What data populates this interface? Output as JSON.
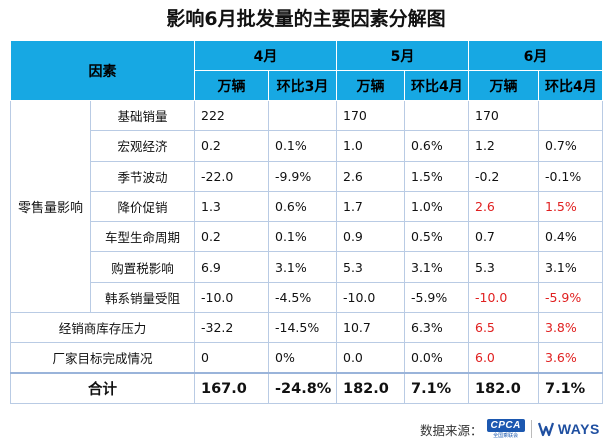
{
  "title": "影响6月批发量的主要因素分解图",
  "header": {
    "factor": "因素",
    "months": [
      {
        "label": "4月",
        "col1": "万辆",
        "col2": "环比3月"
      },
      {
        "label": "5月",
        "col1": "万辆",
        "col2": "环比4月"
      },
      {
        "label": "6月",
        "col1": "万辆",
        "col2": "环比4月"
      }
    ]
  },
  "retail_group_label": "零售量影响",
  "rows": [
    {
      "label": "基础销量",
      "apr_v": "222",
      "apr_p": "",
      "may_v": "170",
      "may_p": "",
      "jun_v": "170",
      "jun_p": ""
    },
    {
      "label": "宏观经济",
      "apr_v": "0.2",
      "apr_p": "0.1%",
      "may_v": "1.0",
      "may_p": "0.6%",
      "jun_v": "1.2",
      "jun_p": "0.7%"
    },
    {
      "label": "季节波动",
      "apr_v": "-22.0",
      "apr_p": "-9.9%",
      "may_v": "2.6",
      "may_p": "1.5%",
      "jun_v": "-0.2",
      "jun_p": "-0.1%"
    },
    {
      "label": "降价促销",
      "apr_v": "1.3",
      "apr_p": "0.6%",
      "may_v": "1.7",
      "may_p": "1.0%",
      "jun_v": "2.6",
      "jun_p": "1.5%"
    },
    {
      "label": "车型生命周期",
      "apr_v": "0.2",
      "apr_p": "0.1%",
      "may_v": "0.9",
      "may_p": "0.5%",
      "jun_v": "0.7",
      "jun_p": "0.4%"
    },
    {
      "label": "购置税影响",
      "apr_v": "6.9",
      "apr_p": "3.1%",
      "may_v": "5.3",
      "may_p": "3.1%",
      "jun_v": "5.3",
      "jun_p": "3.1%"
    },
    {
      "label": "韩系销量受阻",
      "apr_v": "-10.0",
      "apr_p": "-4.5%",
      "may_v": "-10.0",
      "may_p": "-5.9%",
      "jun_v": "-10.0",
      "jun_p": "-5.9%"
    }
  ],
  "other_rows": [
    {
      "label": "经销商库存压力",
      "apr_v": "-32.2",
      "apr_p": "-14.5%",
      "may_v": "10.7",
      "may_p": "6.3%",
      "jun_v": "6.5",
      "jun_p": "3.8%"
    },
    {
      "label": "厂家目标完成情况",
      "apr_v": "0",
      "apr_p": "0%",
      "may_v": "0.0",
      "may_p": "0.0%",
      "jun_v": "6.0",
      "jun_p": "3.6%"
    }
  ],
  "total": {
    "label": "合计",
    "apr_v": "167.0",
    "apr_p": "-24.8%",
    "may_v": "182.0",
    "may_p": "7.1%",
    "jun_v": "182.0",
    "jun_p": "7.1%"
  },
  "footer": {
    "source_label": "数据来源：",
    "cpca_logo_text": "CPCA",
    "cpca_logo_subtext": "全国乘联会",
    "ways_logo_text": "WAYS"
  },
  "colors": {
    "header_bg": "#17a8e3",
    "highlight_red": "#e02020",
    "border": "#b9cbe4"
  }
}
